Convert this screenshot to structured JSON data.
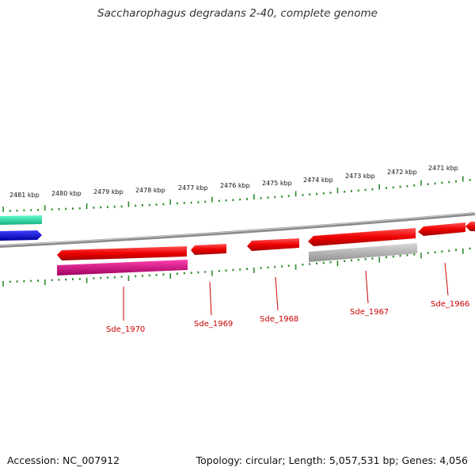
{
  "title": "Saccharophagus degradans 2-40, complete genome",
  "accession": "Accession: NC_007912",
  "summary": "Topology: circular; Length: 5,057,531 bp; Genes: 4,056",
  "ruler_labels": [
    "2481 kbp",
    "2480 kbp",
    "2479 kbp",
    "2478 kbp",
    "2477 kbp",
    "2476 kbp",
    "2475 kbp",
    "2474 kbp",
    "2473 kbp",
    "2472 kbp",
    "2471 kbp"
  ],
  "gene_labels": [
    "Sde_1970",
    "Sde_1969",
    "Sde_1968",
    "Sde_1967",
    "Sde_1966"
  ],
  "colors": {
    "forward_gene": "#ee0000",
    "backbone": "#8a8a8a",
    "ticks": "#2e8b2e",
    "label": "#cc0000",
    "teal_feature": "#2ee0a8",
    "blue_feature": "#1010e0",
    "magenta_feature": "#e0108a",
    "gray_feature": "#b0b0b0"
  }
}
